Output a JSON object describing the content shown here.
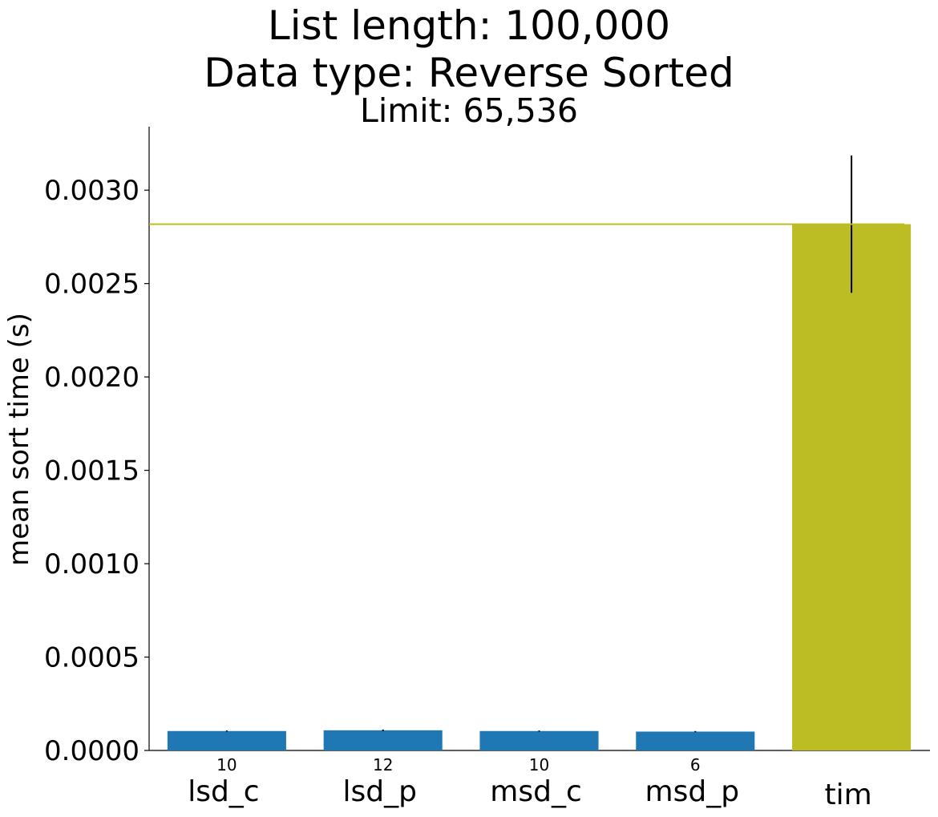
{
  "title": {
    "line1": "List length: 100,000",
    "line2": "Data type: Reverse Sorted",
    "line3": "Limit: 65,536"
  },
  "chart_data": {
    "type": "bar",
    "title": "List length: 100,000 / Data type: Reverse Sorted / Limit: 65,536",
    "ylabel": "mean sort time (s)",
    "xlabel": "",
    "ylim": [
      0,
      0.00334
    ],
    "yticks": [
      0.0,
      0.0005,
      0.001,
      0.0015,
      0.002,
      0.0025,
      0.003
    ],
    "ytick_labels": [
      "0.0000",
      "0.0005",
      "0.0010",
      "0.0015",
      "0.0020",
      "0.0025",
      "0.0030"
    ],
    "categories": [
      "lsd_c",
      "lsd_p",
      "msd_c",
      "msd_p",
      "tim"
    ],
    "values": [
      0.000104,
      0.000108,
      0.000104,
      0.000101,
      0.002818
    ],
    "errors": [
      3e-06,
      4e-06,
      3e-06,
      3e-06,
      0.000368
    ],
    "bar_labels": [
      "10",
      "12",
      "10",
      "6",
      ""
    ],
    "colors": [
      "#1f77b4",
      "#1f77b4",
      "#1f77b4",
      "#1f77b4",
      "#bcbd22"
    ],
    "reference_line": {
      "value": 0.002818,
      "color": "#bcbd22"
    },
    "grid": false,
    "legend": "none"
  }
}
